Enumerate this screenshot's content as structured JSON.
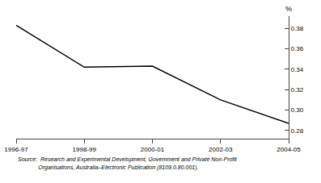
{
  "chart_data": {
    "type": "line",
    "categories": [
      "1996-97",
      "1998-99",
      "2000-01",
      "2002-03",
      "2004-05"
    ],
    "values": [
      0.383,
      0.342,
      0.343,
      0.31,
      0.287
    ],
    "color": "#000000",
    "ylim": [
      0.272,
      0.392
    ],
    "yticks": [
      0.28,
      {
        "value": 0.3,
        "label": "0.30"
      },
      0.32,
      0.34,
      0.36,
      0.38
    ],
    "ylabel": "%",
    "annotations": [
      "Source:  Research and Experimental Development, Government and Private Non-Profit",
      "             Organisations, Australia–Electronic Publication (8109.0.80.001)."
    ],
    "grid": false
  }
}
